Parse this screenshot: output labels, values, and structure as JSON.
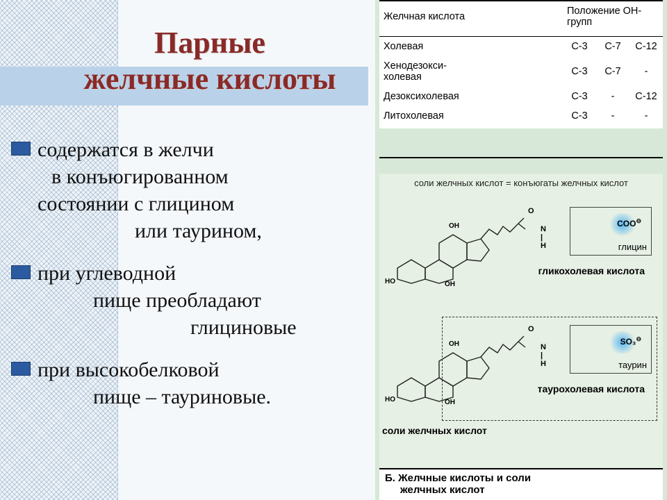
{
  "title": {
    "line1": "Парные",
    "line2": "желчные кислоты",
    "color": "#8a2a28"
  },
  "bullet_color": "#2b5aa0",
  "bullets": [
    {
      "lines": [
        {
          "text": "содержатся в желчи",
          "cls": ""
        },
        {
          "text": "в конъюгированном",
          "cls": "wrap2"
        },
        {
          "text": "состоянии с глицином",
          "cls": ""
        },
        {
          "text": "или таурином,",
          "cls": "wrap3"
        }
      ]
    },
    {
      "lines": [
        {
          "text": "при углеводной",
          "cls": ""
        },
        {
          "text": "пище преобладают",
          "cls": "wrap5"
        },
        {
          "text": "глициновые",
          "cls": "wrap4"
        }
      ]
    },
    {
      "lines": [
        {
          "text": "при высокобелковой",
          "cls": ""
        },
        {
          "text": "пище – тауриновые.",
          "cls": "wrap5"
        }
      ]
    }
  ],
  "table": {
    "headers": [
      "Желчная кислота",
      "Положение ОН-групп"
    ],
    "rows": [
      {
        "name": "Холевая",
        "c": [
          "C-3",
          "C-7",
          "C-12"
        ]
      },
      {
        "name": "Хенодезокси-\nхолевая",
        "c": [
          "C-3",
          "C-7",
          "-"
        ]
      },
      {
        "name": "Дезоксихолевая",
        "c": [
          "C-3",
          "-",
          "C-12"
        ]
      },
      {
        "name": "Литохолевая",
        "c": [
          "C-3",
          "-",
          "-"
        ]
      }
    ]
  },
  "diagram": {
    "equation": "соли желчных кислот = конъюгаты желчных кислот",
    "conjugates": [
      {
        "formula": "COO",
        "sup": "⊖",
        "name": "глицин",
        "ring_color": "#59b6f1",
        "mol_label": "гликохолевая кислота"
      },
      {
        "formula": "SO₃",
        "sup": "⊖",
        "name": "таурин",
        "ring_color": "#59b6f1",
        "mol_label": "таурохолевая кислота"
      }
    ],
    "salt_label": "соли желчных кислот",
    "section_label_1": "Б. Желчные кислоты и соли",
    "section_label_2": "желчных кислот",
    "atoms": {
      "O": "O",
      "N": "N",
      "H": "H",
      "OH": "OH",
      "HO": "HO"
    }
  },
  "styling": {
    "slide_bg": "#f5f8fb",
    "hatch_stroke": "rgba(90,130,170,.35)",
    "title_band_bg": "#b9d2ea",
    "right_panel_bg": "#d8e8d8",
    "diagram_bg": "#e6f0e4",
    "rule_color": "#000000",
    "text_color": "#111111"
  }
}
